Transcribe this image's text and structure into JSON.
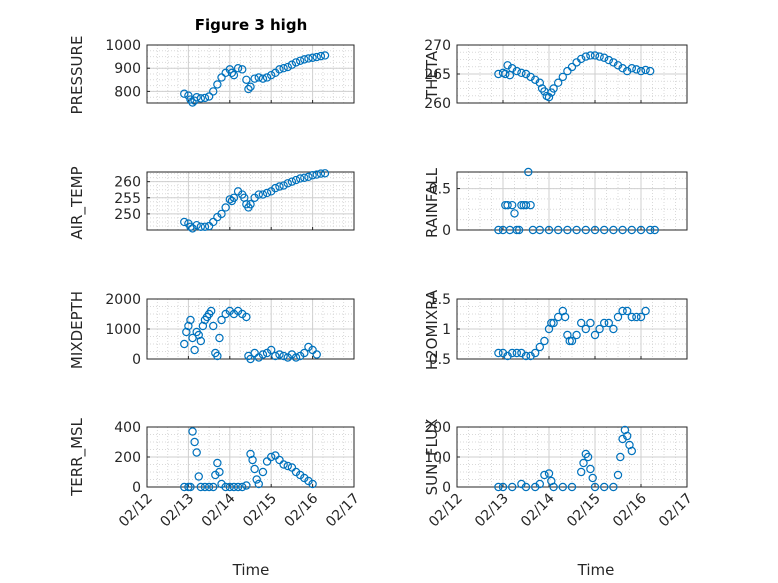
{
  "chart_data": [
    {
      "type": "scatter",
      "title": "Figure 3 high",
      "xlabel": "",
      "ylabel": "PRESSURE",
      "xlim": [
        "02/12",
        "02/17"
      ],
      "ylim": [
        750,
        1000
      ],
      "yticks": [
        800,
        900,
        1000
      ],
      "points": [
        [
          12.9,
          790
        ],
        [
          13.0,
          782
        ],
        [
          13.05,
          765
        ],
        [
          13.1,
          752
        ],
        [
          13.15,
          760
        ],
        [
          13.2,
          775
        ],
        [
          13.3,
          770
        ],
        [
          13.4,
          772
        ],
        [
          13.5,
          778
        ],
        [
          13.6,
          800
        ],
        [
          13.7,
          830
        ],
        [
          13.8,
          860
        ],
        [
          13.9,
          880
        ],
        [
          14.0,
          895
        ],
        [
          14.05,
          880
        ],
        [
          14.1,
          870
        ],
        [
          14.2,
          900
        ],
        [
          14.3,
          895
        ],
        [
          14.4,
          850
        ],
        [
          14.45,
          810
        ],
        [
          14.5,
          820
        ],
        [
          14.6,
          855
        ],
        [
          14.7,
          860
        ],
        [
          14.8,
          855
        ],
        [
          14.9,
          860
        ],
        [
          15.0,
          870
        ],
        [
          15.1,
          880
        ],
        [
          15.2,
          895
        ],
        [
          15.3,
          900
        ],
        [
          15.4,
          905
        ],
        [
          15.5,
          915
        ],
        [
          15.6,
          925
        ],
        [
          15.7,
          932
        ],
        [
          15.8,
          938
        ],
        [
          15.9,
          942
        ],
        [
          16.0,
          945
        ],
        [
          16.1,
          948
        ],
        [
          16.2,
          952
        ],
        [
          16.3,
          955
        ]
      ]
    },
    {
      "type": "scatter",
      "title": "",
      "xlabel": "",
      "ylabel": "THETA",
      "xlim": [
        "02/12",
        "02/17"
      ],
      "ylim": [
        260,
        270
      ],
      "yticks": [
        260,
        265,
        270
      ],
      "points": [
        [
          12.9,
          265
        ],
        [
          13.0,
          265.2
        ],
        [
          13.05,
          265
        ],
        [
          13.1,
          266.5
        ],
        [
          13.15,
          264.8
        ],
        [
          13.2,
          266
        ],
        [
          13.3,
          265.5
        ],
        [
          13.4,
          265.2
        ],
        [
          13.5,
          265
        ],
        [
          13.6,
          264.5
        ],
        [
          13.7,
          264
        ],
        [
          13.8,
          263.5
        ],
        [
          13.85,
          262.5
        ],
        [
          13.9,
          262
        ],
        [
          13.95,
          261.2
        ],
        [
          14.0,
          261
        ],
        [
          14.05,
          261.8
        ],
        [
          14.1,
          262.5
        ],
        [
          14.2,
          263.5
        ],
        [
          14.3,
          264.5
        ],
        [
          14.4,
          265.5
        ],
        [
          14.5,
          266.2
        ],
        [
          14.6,
          267
        ],
        [
          14.7,
          267.6
        ],
        [
          14.8,
          268
        ],
        [
          14.9,
          268.2
        ],
        [
          15.0,
          268.2
        ],
        [
          15.1,
          268
        ],
        [
          15.2,
          267.8
        ],
        [
          15.3,
          267.4
        ],
        [
          15.4,
          267
        ],
        [
          15.5,
          266.5
        ],
        [
          15.6,
          266
        ],
        [
          15.7,
          265.5
        ],
        [
          15.8,
          266
        ],
        [
          15.9,
          265.8
        ],
        [
          16.0,
          265.5
        ],
        [
          16.1,
          265.7
        ],
        [
          16.2,
          265.5
        ]
      ]
    },
    {
      "type": "scatter",
      "title": "",
      "xlabel": "",
      "ylabel": "AIR_TEMP",
      "xlim": [
        "02/12",
        "02/17"
      ],
      "ylim": [
        245,
        263
      ],
      "yticks": [
        250,
        255,
        260
      ],
      "points": [
        [
          12.9,
          247.5
        ],
        [
          13.0,
          247
        ],
        [
          13.05,
          246
        ],
        [
          13.1,
          245.5
        ],
        [
          13.2,
          246.5
        ],
        [
          13.3,
          246
        ],
        [
          13.4,
          246
        ],
        [
          13.5,
          246.2
        ],
        [
          13.6,
          247.5
        ],
        [
          13.7,
          249
        ],
        [
          13.8,
          250
        ],
        [
          13.9,
          252
        ],
        [
          14.0,
          254.5
        ],
        [
          14.05,
          254
        ],
        [
          14.1,
          255
        ],
        [
          14.2,
          257
        ],
        [
          14.3,
          256
        ],
        [
          14.35,
          255
        ],
        [
          14.4,
          253
        ],
        [
          14.45,
          252
        ],
        [
          14.5,
          253
        ],
        [
          14.6,
          255
        ],
        [
          14.7,
          256
        ],
        [
          14.8,
          256
        ],
        [
          14.9,
          256.5
        ],
        [
          15.0,
          257
        ],
        [
          15.1,
          258
        ],
        [
          15.2,
          258.5
        ],
        [
          15.3,
          258.8
        ],
        [
          15.4,
          259.5
        ],
        [
          15.5,
          260
        ],
        [
          15.6,
          260.5
        ],
        [
          15.7,
          261
        ],
        [
          15.8,
          261.2
        ],
        [
          15.9,
          261.5
        ],
        [
          16.0,
          262
        ],
        [
          16.1,
          262.2
        ],
        [
          16.2,
          262.5
        ],
        [
          16.3,
          262.6
        ]
      ]
    },
    {
      "type": "scatter",
      "title": "",
      "xlabel": "",
      "ylabel": "RAINFALL",
      "xlim": [
        "02/12",
        "02/17"
      ],
      "ylim": [
        0,
        0.7
      ],
      "yticks": [
        0,
        0.5
      ],
      "points": [
        [
          12.9,
          0
        ],
        [
          13.0,
          0
        ],
        [
          13.05,
          0.3
        ],
        [
          13.1,
          0.3
        ],
        [
          13.15,
          0
        ],
        [
          13.2,
          0.3
        ],
        [
          13.25,
          0.2
        ],
        [
          13.3,
          0
        ],
        [
          13.35,
          0
        ],
        [
          13.4,
          0.3
        ],
        [
          13.45,
          0.3
        ],
        [
          13.5,
          0.3
        ],
        [
          13.55,
          0.7
        ],
        [
          13.6,
          0.3
        ],
        [
          13.65,
          0
        ],
        [
          13.8,
          0
        ],
        [
          14.0,
          0
        ],
        [
          14.2,
          0
        ],
        [
          14.4,
          0
        ],
        [
          14.6,
          0
        ],
        [
          14.8,
          0
        ],
        [
          15.0,
          0
        ],
        [
          15.2,
          0
        ],
        [
          15.4,
          0
        ],
        [
          15.6,
          0
        ],
        [
          15.8,
          0
        ],
        [
          16.0,
          0
        ],
        [
          16.2,
          0
        ],
        [
          16.3,
          0
        ]
      ]
    },
    {
      "type": "scatter",
      "title": "",
      "xlabel": "",
      "ylabel": "MIXDEPTH",
      "xlim": [
        "02/12",
        "02/17"
      ],
      "ylim": [
        0,
        2000
      ],
      "yticks": [
        0,
        1000,
        2000
      ],
      "points": [
        [
          12.9,
          500
        ],
        [
          12.95,
          900
        ],
        [
          13.0,
          1100
        ],
        [
          13.05,
          1300
        ],
        [
          13.1,
          700
        ],
        [
          13.15,
          300
        ],
        [
          13.2,
          900
        ],
        [
          13.25,
          800
        ],
        [
          13.3,
          600
        ],
        [
          13.35,
          1100
        ],
        [
          13.4,
          1300
        ],
        [
          13.45,
          1400
        ],
        [
          13.5,
          1500
        ],
        [
          13.55,
          1600
        ],
        [
          13.6,
          1100
        ],
        [
          13.65,
          200
        ],
        [
          13.7,
          100
        ],
        [
          13.75,
          700
        ],
        [
          13.8,
          1300
        ],
        [
          13.9,
          1500
        ],
        [
          14.0,
          1600
        ],
        [
          14.1,
          1500
        ],
        [
          14.2,
          1600
        ],
        [
          14.3,
          1500
        ],
        [
          14.4,
          1400
        ],
        [
          14.45,
          100
        ],
        [
          14.5,
          0
        ],
        [
          14.6,
          200
        ],
        [
          14.7,
          50
        ],
        [
          14.8,
          150
        ],
        [
          14.9,
          200
        ],
        [
          15.0,
          300
        ],
        [
          15.1,
          100
        ],
        [
          15.2,
          150
        ],
        [
          15.3,
          100
        ],
        [
          15.4,
          50
        ],
        [
          15.5,
          150
        ],
        [
          15.6,
          50
        ],
        [
          15.7,
          100
        ],
        [
          15.8,
          200
        ],
        [
          15.9,
          400
        ],
        [
          16.0,
          300
        ],
        [
          16.1,
          150
        ]
      ]
    },
    {
      "type": "scatter",
      "title": "",
      "xlabel": "",
      "ylabel": "H2OMIXRA",
      "xlim": [
        "02/12",
        "02/17"
      ],
      "ylim": [
        0.5,
        1.5
      ],
      "yticks": [
        0.5,
        1,
        1.5
      ],
      "points": [
        [
          12.9,
          0.6
        ],
        [
          13.0,
          0.6
        ],
        [
          13.1,
          0.55
        ],
        [
          13.2,
          0.6
        ],
        [
          13.3,
          0.6
        ],
        [
          13.4,
          0.6
        ],
        [
          13.5,
          0.55
        ],
        [
          13.6,
          0.55
        ],
        [
          13.7,
          0.6
        ],
        [
          13.8,
          0.7
        ],
        [
          13.9,
          0.8
        ],
        [
          14.0,
          1.0
        ],
        [
          14.05,
          1.1
        ],
        [
          14.1,
          1.1
        ],
        [
          14.2,
          1.2
        ],
        [
          14.3,
          1.3
        ],
        [
          14.35,
          1.2
        ],
        [
          14.4,
          0.9
        ],
        [
          14.45,
          0.8
        ],
        [
          14.5,
          0.8
        ],
        [
          14.6,
          0.9
        ],
        [
          14.7,
          1.1
        ],
        [
          14.8,
          1.0
        ],
        [
          14.9,
          1.1
        ],
        [
          15.0,
          0.9
        ],
        [
          15.1,
          1.0
        ],
        [
          15.2,
          1.1
        ],
        [
          15.3,
          1.1
        ],
        [
          15.4,
          1.0
        ],
        [
          15.5,
          1.2
        ],
        [
          15.6,
          1.3
        ],
        [
          15.7,
          1.3
        ],
        [
          15.8,
          1.2
        ],
        [
          15.9,
          1.2
        ],
        [
          16.0,
          1.2
        ],
        [
          16.1,
          1.3
        ]
      ]
    },
    {
      "type": "scatter",
      "title": "",
      "xlabel": "Time",
      "ylabel": "TERR_MSL",
      "xlim": [
        "02/12",
        "02/17"
      ],
      "ylim": [
        0,
        400
      ],
      "yticks": [
        0,
        200,
        400
      ],
      "xticks": [
        "02/12",
        "02/13",
        "02/14",
        "02/15",
        "02/16",
        "02/17"
      ],
      "points": [
        [
          12.9,
          0
        ],
        [
          13.0,
          0
        ],
        [
          13.05,
          0
        ],
        [
          13.1,
          370
        ],
        [
          13.15,
          300
        ],
        [
          13.2,
          230
        ],
        [
          13.25,
          70
        ],
        [
          13.3,
          0
        ],
        [
          13.4,
          0
        ],
        [
          13.5,
          0
        ],
        [
          13.6,
          0
        ],
        [
          13.65,
          80
        ],
        [
          13.7,
          160
        ],
        [
          13.75,
          100
        ],
        [
          13.8,
          20
        ],
        [
          13.9,
          0
        ],
        [
          14.0,
          0
        ],
        [
          14.1,
          0
        ],
        [
          14.2,
          0
        ],
        [
          14.3,
          0
        ],
        [
          14.4,
          10
        ],
        [
          14.5,
          220
        ],
        [
          14.55,
          180
        ],
        [
          14.6,
          120
        ],
        [
          14.65,
          50
        ],
        [
          14.7,
          20
        ],
        [
          14.8,
          100
        ],
        [
          14.9,
          170
        ],
        [
          15.0,
          200
        ],
        [
          15.1,
          210
        ],
        [
          15.2,
          180
        ],
        [
          15.3,
          150
        ],
        [
          15.4,
          140
        ],
        [
          15.5,
          130
        ],
        [
          15.6,
          100
        ],
        [
          15.7,
          80
        ],
        [
          15.8,
          60
        ],
        [
          15.9,
          40
        ],
        [
          16.0,
          20
        ]
      ]
    },
    {
      "type": "scatter",
      "title": "",
      "xlabel": "Time",
      "ylabel": "SUN_FLUX",
      "xlim": [
        "02/12",
        "02/17"
      ],
      "ylim": [
        0,
        200
      ],
      "yticks": [
        0,
        100,
        200
      ],
      "xticks": [
        "02/12",
        "02/13",
        "02/14",
        "02/15",
        "02/16",
        "02/17"
      ],
      "points": [
        [
          12.9,
          0
        ],
        [
          13.0,
          0
        ],
        [
          13.2,
          0
        ],
        [
          13.4,
          10
        ],
        [
          13.5,
          0
        ],
        [
          13.7,
          0
        ],
        [
          13.8,
          10
        ],
        [
          13.9,
          40
        ],
        [
          14.0,
          45
        ],
        [
          14.05,
          20
        ],
        [
          14.1,
          0
        ],
        [
          14.3,
          0
        ],
        [
          14.5,
          0
        ],
        [
          14.7,
          50
        ],
        [
          14.75,
          80
        ],
        [
          14.8,
          110
        ],
        [
          14.85,
          100
        ],
        [
          14.9,
          60
        ],
        [
          14.95,
          30
        ],
        [
          15.0,
          0
        ],
        [
          15.2,
          0
        ],
        [
          15.4,
          0
        ],
        [
          15.5,
          40
        ],
        [
          15.55,
          100
        ],
        [
          15.6,
          160
        ],
        [
          15.65,
          190
        ],
        [
          15.7,
          170
        ],
        [
          15.75,
          140
        ],
        [
          15.8,
          120
        ]
      ]
    }
  ]
}
